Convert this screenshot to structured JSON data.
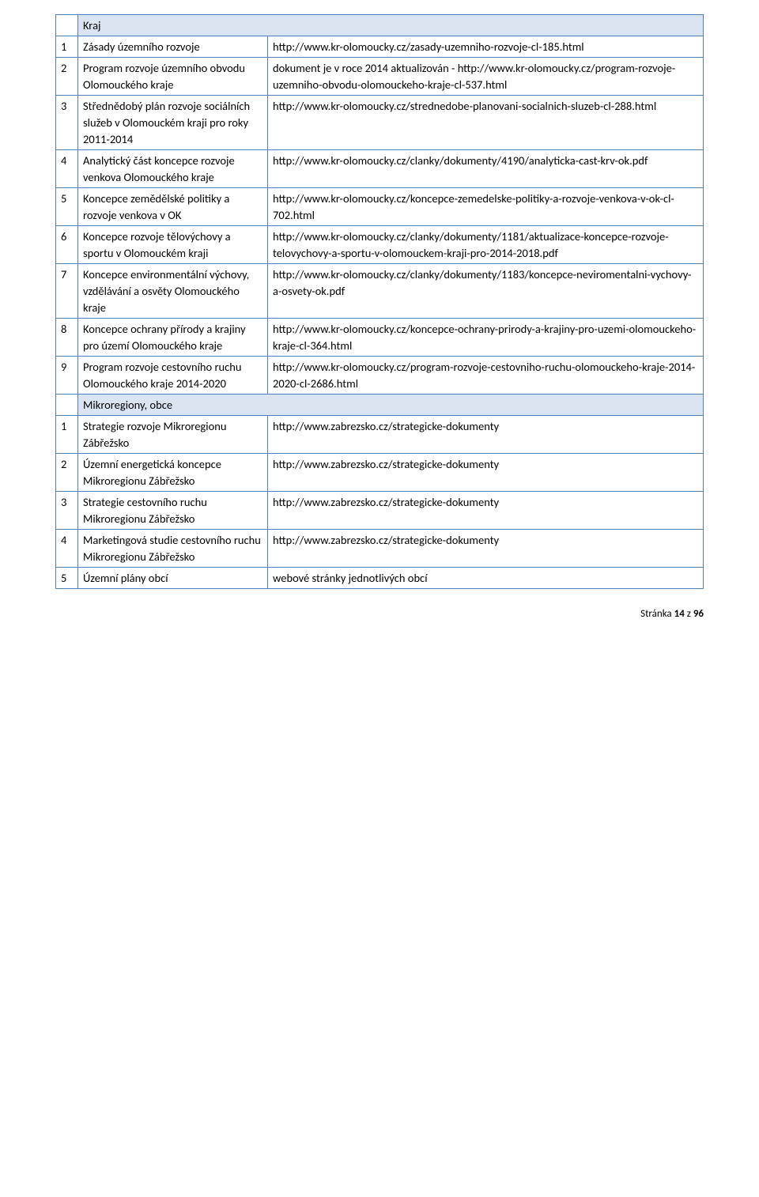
{
  "colors": {
    "border": "#4f81bd",
    "section_bg": "#dbe5f1",
    "text": "#000000",
    "page_bg": "#ffffff"
  },
  "rows": [
    {
      "type": "section",
      "label": "Kraj"
    },
    {
      "type": "data",
      "idx": "1",
      "name": "Zásady územního rozvoje",
      "url": "http://www.kr-olomoucky.cz/zasady-uzemniho-rozvoje-cl-185.html"
    },
    {
      "type": "data",
      "idx": "2",
      "name": "Program rozvoje územního obvodu Olomouckého kraje",
      "url": "dokument je v roce 2014 aktualizován - http://www.kr-olomoucky.cz/program-rozvoje-uzemniho-obvodu-olomouckeho-kraje-cl-537.html"
    },
    {
      "type": "data",
      "idx": "3",
      "name": "Střednědobý plán rozvoje sociálních služeb v Olomouckém kraji pro roky 2011-2014",
      "url": "http://www.kr-olomoucky.cz/strednedobe-planovani-socialnich-sluzeb-cl-288.html"
    },
    {
      "type": "data",
      "idx": "4",
      "name": "Analytický část koncepce rozvoje venkova Olomouckého kraje",
      "url": "http://www.kr-olomoucky.cz/clanky/dokumenty/4190/analyticka-cast-krv-ok.pdf"
    },
    {
      "type": "data",
      "idx": "5",
      "name": "Koncepce zemědělské politiky a rozvoje venkova v OK",
      "url": "http://www.kr-olomoucky.cz/koncepce-zemedelske-politiky-a-rozvoje-venkova-v-ok-cl-702.html"
    },
    {
      "type": "data",
      "idx": "6",
      "name": "Koncepce rozvoje tělovýchovy a sportu v Olomouckém kraji",
      "url": "http://www.kr-olomoucky.cz/clanky/dokumenty/1181/aktualizace-koncepce-rozvoje-telovychovy-a-sportu-v-olomouckem-kraji-pro-2014-2018.pdf"
    },
    {
      "type": "data",
      "idx": "7",
      "name": "Koncepce environmentální výchovy, vzdělávání a osvěty Olomouckého kraje",
      "url": "http://www.kr-olomoucky.cz/clanky/dokumenty/1183/koncepce-neviromentalni-vychovy-a-osvety-ok.pdf"
    },
    {
      "type": "data",
      "idx": "8",
      "name": "Koncepce ochrany přírody a krajiny pro území Olomouckého kraje",
      "url": "http://www.kr-olomoucky.cz/koncepce-ochrany-prirody-a-krajiny-pro-uzemi-olomouckeho-kraje-cl-364.html"
    },
    {
      "type": "data",
      "idx": "9",
      "name": "Program rozvoje cestovního ruchu Olomouckého kraje 2014-2020",
      "url": "http://www.kr-olomoucky.cz/program-rozvoje-cestovniho-ruchu-olomouckeho-kraje-2014-2020-cl-2686.html"
    },
    {
      "type": "section",
      "label": "Mikroregiony, obce"
    },
    {
      "type": "data",
      "idx": "1",
      "name": "Strategie rozvoje Mikroregionu Zábřežsko",
      "url": "http://www.zabrezsko.cz/strategicke-dokumenty"
    },
    {
      "type": "data",
      "idx": "2",
      "name": "Územní energetická koncepce Mikroregionu Zábřežsko",
      "url": "http://www.zabrezsko.cz/strategicke-dokumenty"
    },
    {
      "type": "data",
      "idx": "3",
      "name": "Strategie cestovního ruchu Mikroregionu Zábřežsko",
      "url": "http://www.zabrezsko.cz/strategicke-dokumenty"
    },
    {
      "type": "data",
      "idx": "4",
      "name": "Marketingová studie cestovního ruchu Mikroregionu Zábřežsko",
      "url": "http://www.zabrezsko.cz/strategicke-dokumenty"
    },
    {
      "type": "data",
      "idx": "5",
      "name": "Územní plány obcí",
      "url": "webové stránky jednotlivých obcí"
    }
  ],
  "footer": {
    "prefix": "Stránka ",
    "page": "14",
    "mid": " z ",
    "total": "96"
  }
}
